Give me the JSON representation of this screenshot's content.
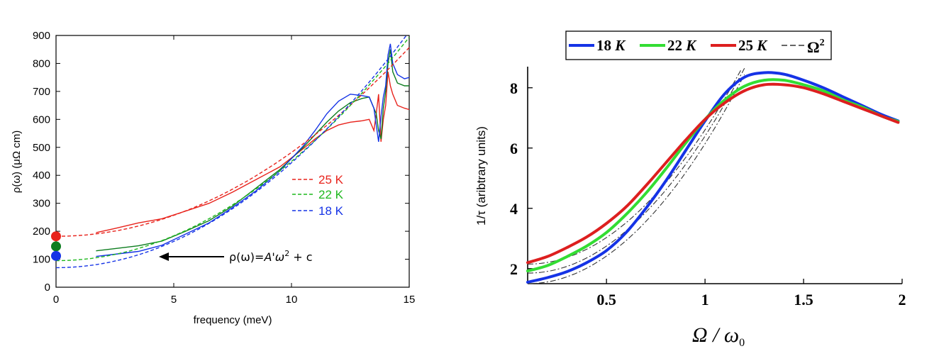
{
  "chart_data": [
    {
      "type": "line",
      "title": "",
      "xlabel": "frequency (meV)",
      "ylabel": "ρ(ω) (μΩ cm)",
      "xlim": [
        0,
        15
      ],
      "ylim": [
        0,
        900
      ],
      "xticks": [
        0,
        5,
        10,
        15
      ],
      "yticks": [
        0,
        100,
        200,
        300,
        400,
        500,
        600,
        700,
        800,
        900
      ],
      "xtick_labels": [
        "0",
        "5",
        "10",
        "15"
      ],
      "ytick_labels": [
        "0",
        "100",
        "200",
        "300",
        "400",
        "500",
        "600",
        "700",
        "800",
        "900"
      ],
      "annotation": {
        "text_main": "ρ(ω)=",
        "text_italic": "A'ω",
        "text_sup": "2",
        "text_tail": " + c",
        "arrow_to": [
          4.3,
          110
        ]
      },
      "legend": [
        {
          "name": "25 K",
          "color": "#e8231c"
        },
        {
          "name": "22 K",
          "color": "#1db81d"
        },
        {
          "name": "18 K",
          "color": "#1533e6"
        }
      ],
      "series": [
        {
          "name": "25 K",
          "color": "#e8231c",
          "style": "solid",
          "x": [
            1.7,
            2.5,
            3.5,
            4.5,
            5.5,
            6.5,
            7.5,
            8.5,
            9.5,
            10.5,
            11.0,
            11.5,
            12.0,
            12.5,
            13.0,
            13.3,
            13.5,
            13.6,
            13.7,
            13.8,
            13.9,
            14.0,
            14.1,
            14.2,
            14.3,
            14.5,
            14.8,
            15.0
          ],
          "y": [
            195,
            210,
            230,
            245,
            272,
            300,
            340,
            385,
            430,
            495,
            530,
            560,
            580,
            590,
            595,
            600,
            560,
            620,
            690,
            520,
            600,
            650,
            770,
            720,
            690,
            650,
            640,
            635
          ]
        },
        {
          "name": "22 K",
          "color": "#0d7d1f",
          "style": "solid",
          "x": [
            1.7,
            2.5,
            3.5,
            4.5,
            5.5,
            6.5,
            7.5,
            8.5,
            9.5,
            10.5,
            11.0,
            11.5,
            12.0,
            12.5,
            13.0,
            13.3,
            13.5,
            13.6,
            13.7,
            13.8,
            13.9,
            14.0,
            14.1,
            14.2,
            14.3,
            14.5,
            14.8,
            15.0
          ],
          "y": [
            130,
            138,
            148,
            165,
            200,
            238,
            290,
            355,
            420,
            500,
            545,
            590,
            630,
            660,
            675,
            680,
            640,
            620,
            560,
            530,
            640,
            700,
            800,
            850,
            770,
            730,
            720,
            720
          ]
        },
        {
          "name": "18 K",
          "color": "#1533e6",
          "style": "solid",
          "x": [
            1.7,
            2.5,
            3.5,
            4.5,
            5.5,
            6.5,
            7.5,
            8.5,
            9.5,
            10.5,
            11.0,
            11.5,
            12.0,
            12.5,
            13.0,
            13.3,
            13.5,
            13.6,
            13.7,
            13.8,
            13.9,
            14.0,
            14.1,
            14.2,
            14.3,
            14.5,
            14.8,
            15.0
          ],
          "y": [
            110,
            118,
            128,
            150,
            190,
            230,
            285,
            345,
            415,
            505,
            560,
            620,
            665,
            690,
            685,
            680,
            640,
            580,
            520,
            610,
            680,
            720,
            830,
            870,
            800,
            760,
            745,
            750
          ]
        },
        {
          "name": "25 K fit",
          "color": "#e8231c",
          "style": "dashed",
          "fit": {
            "A": 3.0,
            "c": 182
          },
          "x_range": [
            0,
            15
          ]
        },
        {
          "name": "22 K fit",
          "color": "#1db81d",
          "style": "dashed",
          "fit": {
            "A": 3.55,
            "c": 95
          },
          "x_range": [
            0,
            15
          ]
        },
        {
          "name": "18 K fit",
          "color": "#1533e6",
          "style": "dashed",
          "fit": {
            "A": 3.75,
            "c": 70
          },
          "x_range": [
            0,
            15
          ]
        }
      ],
      "markers": [
        {
          "x": 0,
          "y": 182,
          "color": "#e8231c"
        },
        {
          "x": 0,
          "y": 146,
          "color": "#0d7d1f"
        },
        {
          "x": 0,
          "y": 112,
          "color": "#1533e6"
        }
      ]
    },
    {
      "type": "line",
      "title": "",
      "xlabel_main": "Ω / ω",
      "xlabel_sub": "0",
      "ylabel": "1/τ (aribtrary units)",
      "xlim": [
        0.1,
        2.0
      ],
      "ylim": [
        1.5,
        8.7
      ],
      "xticks": [
        0.5,
        1,
        1.5,
        2
      ],
      "yticks": [
        2,
        4,
        6,
        8
      ],
      "xtick_labels": [
        "0.5",
        "1",
        "1.5",
        "2"
      ],
      "ytick_labels": [
        "2",
        "4",
        "6",
        "8"
      ],
      "legend": [
        {
          "name": "18",
          "unit": "K",
          "color": "#1533e6",
          "style": "solid"
        },
        {
          "name": "22",
          "unit": "K",
          "color": "#33dd33",
          "style": "solid"
        },
        {
          "name": "25",
          "unit": "K",
          "color": "#dd1f1f",
          "style": "solid"
        },
        {
          "name": "Ω",
          "sup": "2",
          "color": "#333333",
          "style": "dashdot"
        }
      ],
      "series": [
        {
          "name": "18 K",
          "color": "#1533e6",
          "x": [
            0.1,
            0.2,
            0.3,
            0.4,
            0.5,
            0.6,
            0.7,
            0.8,
            0.9,
            1.0,
            1.1,
            1.2,
            1.3,
            1.4,
            1.5,
            1.6,
            1.7,
            1.8,
            1.9,
            1.98
          ],
          "y": [
            1.55,
            1.7,
            1.9,
            2.2,
            2.6,
            3.2,
            4.0,
            4.9,
            5.9,
            6.9,
            7.8,
            8.35,
            8.5,
            8.45,
            8.25,
            8.0,
            7.7,
            7.4,
            7.1,
            6.9
          ]
        },
        {
          "name": "22 K",
          "color": "#33dd33",
          "x": [
            0.1,
            0.2,
            0.3,
            0.4,
            0.5,
            0.6,
            0.7,
            0.8,
            0.9,
            1.0,
            1.1,
            1.2,
            1.3,
            1.4,
            1.5,
            1.6,
            1.7,
            1.8,
            1.9,
            1.98
          ],
          "y": [
            1.92,
            2.1,
            2.4,
            2.75,
            3.2,
            3.8,
            4.5,
            5.3,
            6.15,
            6.95,
            7.6,
            8.05,
            8.25,
            8.25,
            8.1,
            7.9,
            7.6,
            7.35,
            7.05,
            6.88
          ]
        },
        {
          "name": "25 K",
          "color": "#dd1f1f",
          "x": [
            0.1,
            0.2,
            0.3,
            0.4,
            0.5,
            0.6,
            0.7,
            0.8,
            0.9,
            1.0,
            1.1,
            1.2,
            1.3,
            1.4,
            1.5,
            1.6,
            1.7,
            1.8,
            1.9,
            1.98
          ],
          "y": [
            2.2,
            2.4,
            2.7,
            3.05,
            3.5,
            4.05,
            4.75,
            5.5,
            6.25,
            6.95,
            7.5,
            7.9,
            8.1,
            8.1,
            8.0,
            7.8,
            7.55,
            7.3,
            7.05,
            6.85
          ]
        },
        {
          "name": "Ω² fit 18 K",
          "color": "#333333",
          "style": "dashdot",
          "fit": {
            "A": 4.9,
            "c": 1.5
          },
          "x_range": [
            0.1,
            1.2
          ]
        },
        {
          "name": "Ω² fit 22 K",
          "color": "#333333",
          "style": "dashdot",
          "fit": {
            "A": 4.8,
            "c": 1.85
          },
          "x_range": [
            0.1,
            1.2
          ]
        },
        {
          "name": "Ω² fit 25 K",
          "color": "#333333",
          "style": "dashdot",
          "fit": {
            "A": 4.7,
            "c": 2.15
          },
          "x_range": [
            0.1,
            1.2
          ]
        }
      ]
    }
  ]
}
